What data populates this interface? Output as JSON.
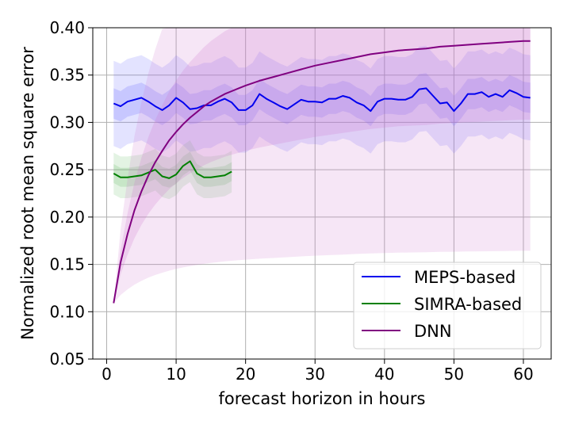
{
  "chart_data": {
    "type": "line",
    "title": "",
    "xlabel": "forecast horizon in hours",
    "ylabel": "Normalized root mean square error",
    "xlim": [
      -2,
      64
    ],
    "ylim": [
      0.05,
      0.4
    ],
    "xticks": [
      0,
      10,
      20,
      30,
      40,
      50,
      60
    ],
    "yticks": [
      0.05,
      0.1,
      0.15,
      0.2,
      0.25,
      0.3,
      0.35,
      0.4
    ],
    "xtick_labels": [
      "0",
      "10",
      "20",
      "30",
      "40",
      "50",
      "60"
    ],
    "ytick_labels": [
      "0.05",
      "0.10",
      "0.15",
      "0.20",
      "0.25",
      "0.30",
      "0.35",
      "0.40"
    ],
    "grid": true,
    "legend_position": "bottom-right",
    "series": [
      {
        "name": "MEPS-based",
        "color": "#0000ee",
        "band_color": "#6666ff",
        "x": [
          1,
          2,
          3,
          4,
          5,
          6,
          7,
          8,
          9,
          10,
          11,
          12,
          13,
          14,
          15,
          16,
          17,
          18,
          19,
          20,
          21,
          22,
          23,
          24,
          25,
          26,
          27,
          28,
          29,
          30,
          31,
          32,
          33,
          34,
          35,
          36,
          37,
          38,
          39,
          40,
          41,
          42,
          43,
          44,
          45,
          46,
          47,
          48,
          49,
          50,
          51,
          52,
          53,
          54,
          55,
          56,
          57,
          58,
          59,
          60,
          61
        ],
        "values": [
          0.32,
          0.317,
          0.322,
          0.324,
          0.326,
          0.322,
          0.317,
          0.313,
          0.318,
          0.326,
          0.321,
          0.314,
          0.315,
          0.318,
          0.318,
          0.322,
          0.325,
          0.321,
          0.313,
          0.313,
          0.318,
          0.33,
          0.325,
          0.321,
          0.317,
          0.314,
          0.319,
          0.324,
          0.322,
          0.322,
          0.321,
          0.325,
          0.325,
          0.328,
          0.326,
          0.321,
          0.318,
          0.312,
          0.322,
          0.325,
          0.325,
          0.324,
          0.324,
          0.327,
          0.335,
          0.336,
          0.328,
          0.32,
          0.321,
          0.312,
          0.32,
          0.33,
          0.33,
          0.332,
          0.327,
          0.33,
          0.327,
          0.334,
          0.331,
          0.327,
          0.326
        ],
        "band_inner_half_width": 0.016,
        "band_outer_half_width": 0.045
      },
      {
        "name": "SIMRA-based",
        "color": "#008000",
        "band_color": "#66bb66",
        "x": [
          1,
          2,
          3,
          4,
          5,
          6,
          7,
          8,
          9,
          10,
          11,
          12,
          13,
          14,
          15,
          16,
          17,
          18
        ],
        "values": [
          0.246,
          0.242,
          0.242,
          0.243,
          0.244,
          0.247,
          0.25,
          0.243,
          0.241,
          0.245,
          0.254,
          0.259,
          0.246,
          0.242,
          0.242,
          0.243,
          0.244,
          0.248
        ],
        "band_inner_half_width": 0.01,
        "band_outer_half_width": 0.022
      },
      {
        "name": "DNN",
        "color": "#800080",
        "band_color": "#cc77cc",
        "x": [
          1,
          2,
          3,
          4,
          5,
          6,
          7,
          8,
          9,
          10,
          11,
          12,
          13,
          14,
          15,
          16,
          17,
          18,
          19,
          20,
          22,
          24,
          26,
          28,
          30,
          32,
          34,
          36,
          38,
          40,
          42,
          44,
          46,
          48,
          50,
          52,
          54,
          56,
          58,
          60,
          61
        ],
        "values": [
          0.109,
          0.152,
          0.182,
          0.207,
          0.227,
          0.244,
          0.258,
          0.27,
          0.281,
          0.29,
          0.298,
          0.305,
          0.311,
          0.317,
          0.322,
          0.326,
          0.33,
          0.333,
          0.336,
          0.339,
          0.344,
          0.348,
          0.352,
          0.356,
          0.36,
          0.363,
          0.366,
          0.369,
          0.372,
          0.374,
          0.376,
          0.377,
          0.378,
          0.38,
          0.381,
          0.382,
          0.383,
          0.384,
          0.385,
          0.386,
          0.386
        ],
        "band_inner_scale": 0.3,
        "band_outer_scale": 0.8
      }
    ]
  }
}
